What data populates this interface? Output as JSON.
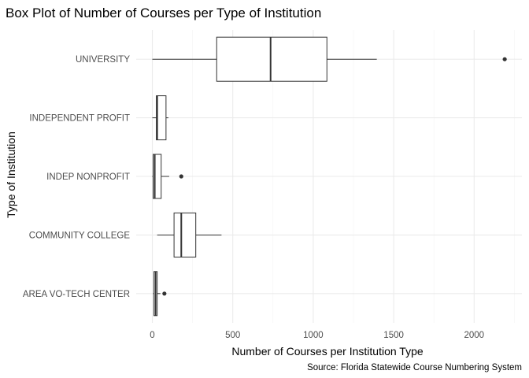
{
  "chart_data": {
    "type": "boxplot",
    "orientation": "horizontal",
    "title": "Box Plot of Number of Courses per Type of Institution",
    "xlabel": "Number of Courses per Institution Type",
    "ylabel": "Type of Institution",
    "caption": "Source: Florida Statewide Course Numbering System",
    "xlim": [
      -150,
      2270
    ],
    "x_ticks": [
      0,
      500,
      1000,
      1500,
      2000
    ],
    "grid": true,
    "categories": [
      "AREA VO-TECH CENTER",
      "COMMUNITY COLLEGE",
      "INDEP NONPROFIT",
      "INDEPENDENT PROFIT",
      "UNIVERSITY"
    ],
    "boxes": [
      {
        "category": "AREA VO-TECH CENTER",
        "min": 5,
        "q1": 10,
        "median": 20,
        "q3": 30,
        "max": 50,
        "outliers": [
          75
        ]
      },
      {
        "category": "COMMUNITY COLLEGE",
        "min": 30,
        "q1": 135,
        "median": 180,
        "q3": 270,
        "max": 430,
        "outliers": []
      },
      {
        "category": "INDEP NONPROFIT",
        "min": 0,
        "q1": 5,
        "median": 15,
        "q3": 55,
        "max": 105,
        "outliers": [
          180
        ]
      },
      {
        "category": "INDEPENDENT PROFIT",
        "min": 0,
        "q1": 25,
        "median": 30,
        "q3": 85,
        "max": 100,
        "outliers": []
      },
      {
        "category": "UNIVERSITY",
        "min": 0,
        "q1": 400,
        "median": 735,
        "q3": 1085,
        "max": 1395,
        "outliers": [
          2190
        ]
      }
    ]
  }
}
